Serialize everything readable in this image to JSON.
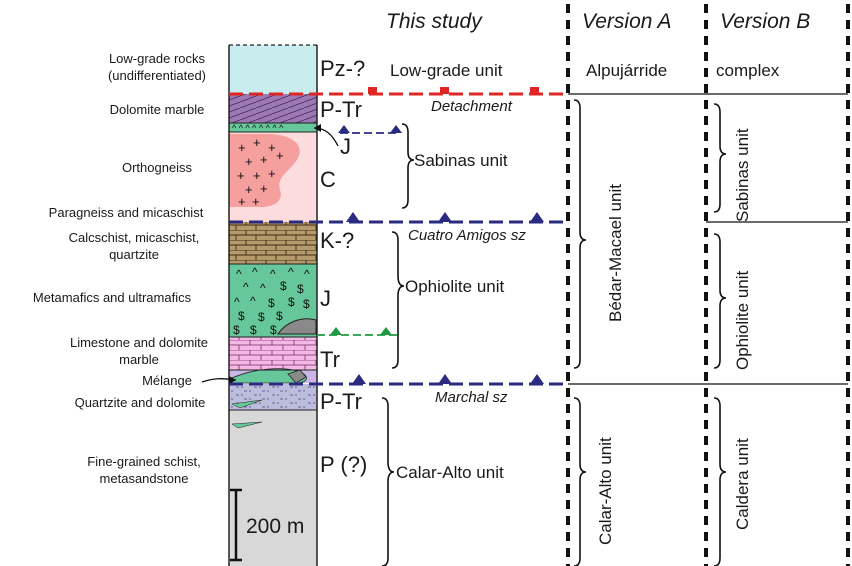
{
  "headers": {
    "this_study": "This study",
    "version_a": "Version A",
    "version_b": "Version B"
  },
  "lithologies": {
    "low_grade_l1": "Low-grade rocks",
    "low_grade_l2": "(undifferentiated)",
    "dolomite_marble": "Dolomite marble",
    "orthogneiss": "Orthogneiss",
    "paragneiss": "Paragneiss and micaschist",
    "calcschist_l1": "Calcschist, micaschist,",
    "calcschist_l2": "quartzite",
    "metamafics": "Metamafics and ultramafics",
    "limestone_l1": "Limestone and dolomite",
    "limestone_l2": "marble",
    "melange": "Mélange",
    "quartzite_dolomite": "Quartzite and dolomite",
    "schist_l1": "Fine-grained schist,",
    "schist_l2": "metasandstone"
  },
  "ages": {
    "pz": "Pz-?",
    "p_tr_upper": "P-Tr",
    "j_upper": "J",
    "c": "C",
    "k": "K-?",
    "j_lower": "J",
    "tr": "Tr",
    "p_tr_lower": "P-Tr",
    "p": "P (?)"
  },
  "units_this_study": {
    "low_grade": "Low-grade unit",
    "sabinas": "Sabinas unit",
    "ophiolite": "Ophiolite unit",
    "calar_alto": "Calar-Alto unit"
  },
  "contacts": {
    "detachment": "Detachment",
    "cuatro_amigos": "Cuatro Amigos sz",
    "marchal": "Marchal sz"
  },
  "version_a": {
    "alpujarride": "Alpujárride",
    "bedar_macael": "Bédar-Macael unit",
    "calar_alto": "Calar-Alto unit"
  },
  "version_b": {
    "complex": "complex",
    "sabinas": "Sabinas unit",
    "ophiolite": "Ophiolite unit",
    "caldera": "Caldera unit"
  },
  "scale_bar": "200 m",
  "colors": {
    "low_grade": "#c9ecee",
    "dolomite_marble": "#9c78b4",
    "orthogneiss_core": "#f59f9f",
    "orthogneiss_host": "#fcdcdc",
    "calcschist": "#b59a6c",
    "metamafics": "#66c79a",
    "limestone": "#f4b8e4",
    "melange": "#6a6ab0",
    "quartzite": "#bcbcdc",
    "schist": "#d8d8d8",
    "detachment": "#e02525",
    "thrust": "#2a2a80",
    "minor_thrust_green": "#1f9a3e"
  }
}
